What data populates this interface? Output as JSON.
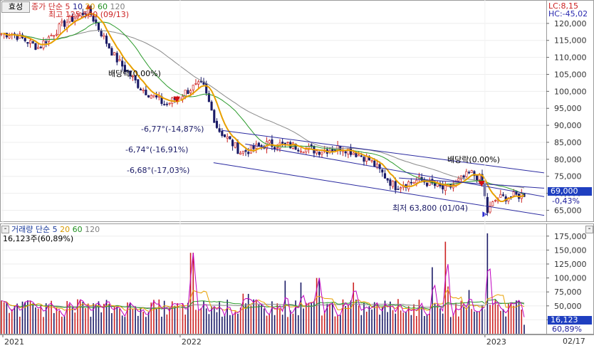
{
  "header": {
    "stock_button": "효성",
    "price_legend": [
      {
        "label": "종가",
        "color": "#cc2a2a"
      },
      {
        "label": "단순",
        "color": "#cc2a2a"
      },
      {
        "label": "5",
        "color": "#cc2a2a"
      },
      {
        "label": "10",
        "color": "#1a1a8c"
      },
      {
        "label": "20",
        "color": "#d89a00"
      },
      {
        "label": "60",
        "color": "#1f8f1f"
      },
      {
        "label": "120",
        "color": "#808080"
      }
    ],
    "lc_label": "LC:8,15",
    "hc_label": "HC:-45,02",
    "collapse_button": "-"
  },
  "volume_header": {
    "legend": [
      {
        "label": "거래량",
        "color": "#1a3a9a"
      },
      {
        "label": "단순",
        "color": "#1a3a9a"
      },
      {
        "label": "5",
        "color": "#cc00cc"
      },
      {
        "label": "20",
        "color": "#d89a00"
      },
      {
        "label": "60",
        "color": "#1f8f1f"
      },
      {
        "label": "120",
        "color": "#808080"
      }
    ],
    "volume_value": "16,123주(60,89%)",
    "collapse_button": "-"
  },
  "annotations": {
    "high": "최고 125,500 (09/13)",
    "low": "최저 63,800 (01/04)",
    "dividend1": "배당락(0.00%)",
    "dividend2": "배당락(0.00%)",
    "ch1": "-6,77°(-14,87%)",
    "ch2": "-6,74°(-16,91%)",
    "ch3": "-6,68°(-17,03%)"
  },
  "price_axis": {
    "ticks": [
      "120,000",
      "115,000",
      "110,000",
      "105,000",
      "100,000",
      "95,000",
      "90,000",
      "85,000",
      "80,000",
      "75,000",
      "70,000",
      "65,000"
    ],
    "current_price": "69,000",
    "current_change": "-0,43%"
  },
  "volume_axis": {
    "ticks": [
      "175,000",
      "150,000",
      "125,000",
      "100,000",
      "75,000",
      "50,000",
      "25,000"
    ],
    "current_volume": "16,123",
    "current_ratio": "60,89%"
  },
  "x_axis": {
    "labels": [
      "2021",
      "2022",
      "2023"
    ],
    "end_label": "02/17"
  },
  "colors": {
    "up": "#cc2222",
    "down": "#1a1a66",
    "ma5": "#c000c0",
    "ma20": "#e8a000",
    "ma60": "#2a9a2a",
    "ma120": "#8a8a8a",
    "channel": "#2a2aa0",
    "price_box": "#1f3fc0"
  },
  "chart_data": {
    "type": "candlestick",
    "period": "daily",
    "x_range": [
      "2021-06",
      "2023-02-17"
    ],
    "price_ylim": [
      63000,
      125000
    ],
    "volume_ylim": [
      0,
      190000
    ],
    "price_anchors": [
      {
        "date": "2021-06",
        "close": 117000
      },
      {
        "date": "2021-07",
        "close": 113000
      },
      {
        "date": "2021-08",
        "close": 120000
      },
      {
        "date": "2021-09-13",
        "close": 124000
      },
      {
        "date": "2021-10",
        "close": 110000
      },
      {
        "date": "2021-11",
        "close": 101000
      },
      {
        "date": "2021-12",
        "close": 96000
      },
      {
        "date": "2022-01",
        "close": 101000
      },
      {
        "date": "2022-01-28",
        "close": 102000
      },
      {
        "date": "2022-02",
        "close": 89000
      },
      {
        "date": "2022-03",
        "close": 82000
      },
      {
        "date": "2022-04",
        "close": 84500
      },
      {
        "date": "2022-05",
        "close": 84000
      },
      {
        "date": "2022-06",
        "close": 82500
      },
      {
        "date": "2022-07",
        "close": 83500
      },
      {
        "date": "2022-08",
        "close": 80000
      },
      {
        "date": "2022-09",
        "close": 72000
      },
      {
        "date": "2022-10",
        "close": 74000
      },
      {
        "date": "2022-11",
        "close": 71000
      },
      {
        "date": "2022-12",
        "close": 76000
      },
      {
        "date": "2022-12-28",
        "close": 74000
      },
      {
        "date": "2023-01-04",
        "close": 64500
      },
      {
        "date": "2023-01",
        "close": 68500
      },
      {
        "date": "2023-02",
        "close": 69500
      },
      {
        "date": "2023-02-17",
        "close": 69000
      }
    ],
    "high": {
      "date": "2021-09-13",
      "value": 125500
    },
    "low": {
      "date": "2023-01-04",
      "value": 63800
    },
    "last_close": 69000,
    "last_change_pct": -0.43,
    "last_volume": 16123,
    "volume_ratio_pct": 60.89,
    "volume_peaks": [
      {
        "date": "2022-01",
        "value": 145000
      },
      {
        "date": "2022-06",
        "value": 100000
      },
      {
        "date": "2022-11",
        "value": 165000
      },
      {
        "date": "2023-01-03",
        "value": 180000
      }
    ],
    "dividend_dates": [
      "2021-12-28",
      "2022-12-28"
    ]
  }
}
